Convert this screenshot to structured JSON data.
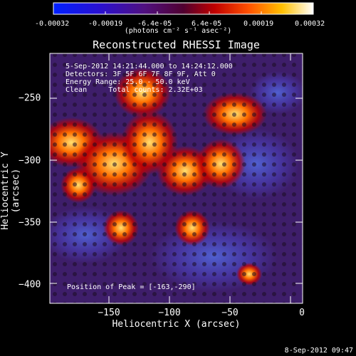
{
  "colorbar": {
    "tick_labels": [
      "-0.00032",
      "-0.00019",
      "-6.4e-05",
      "6.4e-05",
      "0.00019",
      "0.00032"
    ],
    "unit_label": "(photons cm⁻² s⁻¹ asec⁻²)"
  },
  "title": "Reconstructed RHESSI Image",
  "info": {
    "time": "5-Sep-2012 14:21:44.000 to 14:24:12.000",
    "detectors": "Detectors: 3F 5F 6F 7F 8F 9F, Att 0",
    "energy": "Energy Range: 25.0 - 50.0 keV",
    "clean": "Clean     Total counts: 2.32E+03"
  },
  "peak": "Position of Peak = [-163,-290]",
  "axes": {
    "xlabel": "Heliocentric X (arcsec)",
    "ylabel": "Heliocentric Y (arcsec)",
    "x_ticks": [
      "−150",
      "−100",
      "−50",
      "0"
    ],
    "y_ticks": [
      "−250",
      "−300",
      "−350",
      "−400"
    ]
  },
  "footer": "8-Sep-2012 09:47"
}
